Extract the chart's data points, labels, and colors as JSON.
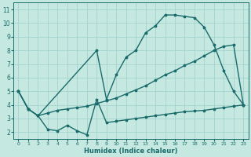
{
  "xlabel": "Humidex (Indice chaleur)",
  "bg_color": "#c5e8e0",
  "grid_color": "#9ecfca",
  "line_color": "#1a6b6b",
  "xlim": [
    -0.5,
    23.5
  ],
  "ylim": [
    1.5,
    11.5
  ],
  "xticks": [
    0,
    1,
    2,
    3,
    4,
    5,
    6,
    7,
    8,
    9,
    10,
    11,
    12,
    13,
    14,
    15,
    16,
    17,
    18,
    19,
    20,
    21,
    22,
    23
  ],
  "yticks": [
    2,
    3,
    4,
    5,
    6,
    7,
    8,
    9,
    10,
    11
  ],
  "top_x": [
    0,
    1,
    2,
    8,
    9,
    10,
    11,
    12,
    13,
    14,
    15,
    16,
    17,
    18,
    19,
    20,
    21,
    22,
    23
  ],
  "top_y": [
    5.0,
    3.7,
    3.2,
    8.0,
    4.4,
    6.2,
    7.5,
    8.0,
    9.3,
    9.8,
    10.6,
    10.6,
    10.5,
    10.4,
    9.7,
    8.4,
    6.5,
    5.0,
    4.0
  ],
  "mid_x": [
    0,
    1,
    2,
    3,
    4,
    5,
    6,
    7,
    8,
    9,
    10,
    11,
    12,
    13,
    14,
    15,
    16,
    17,
    18,
    19,
    20,
    21,
    22,
    23
  ],
  "mid_y": [
    5.0,
    3.7,
    3.2,
    3.4,
    3.6,
    3.7,
    3.8,
    3.9,
    4.1,
    4.3,
    4.5,
    4.8,
    5.1,
    5.4,
    5.8,
    6.2,
    6.5,
    6.9,
    7.2,
    7.6,
    8.0,
    8.3,
    8.4,
    4.0
  ],
  "bot_x": [
    0,
    1,
    2,
    3,
    4,
    5,
    6,
    7,
    8,
    9,
    10,
    11,
    12,
    13,
    14,
    15,
    16,
    17,
    18,
    19,
    20,
    21,
    22,
    23
  ],
  "bot_y": [
    5.0,
    3.7,
    3.2,
    2.2,
    2.1,
    2.5,
    2.1,
    1.8,
    4.4,
    2.7,
    2.8,
    2.9,
    3.0,
    3.1,
    3.2,
    3.3,
    3.4,
    3.5,
    3.55,
    3.6,
    3.7,
    3.8,
    3.9,
    4.0
  ]
}
